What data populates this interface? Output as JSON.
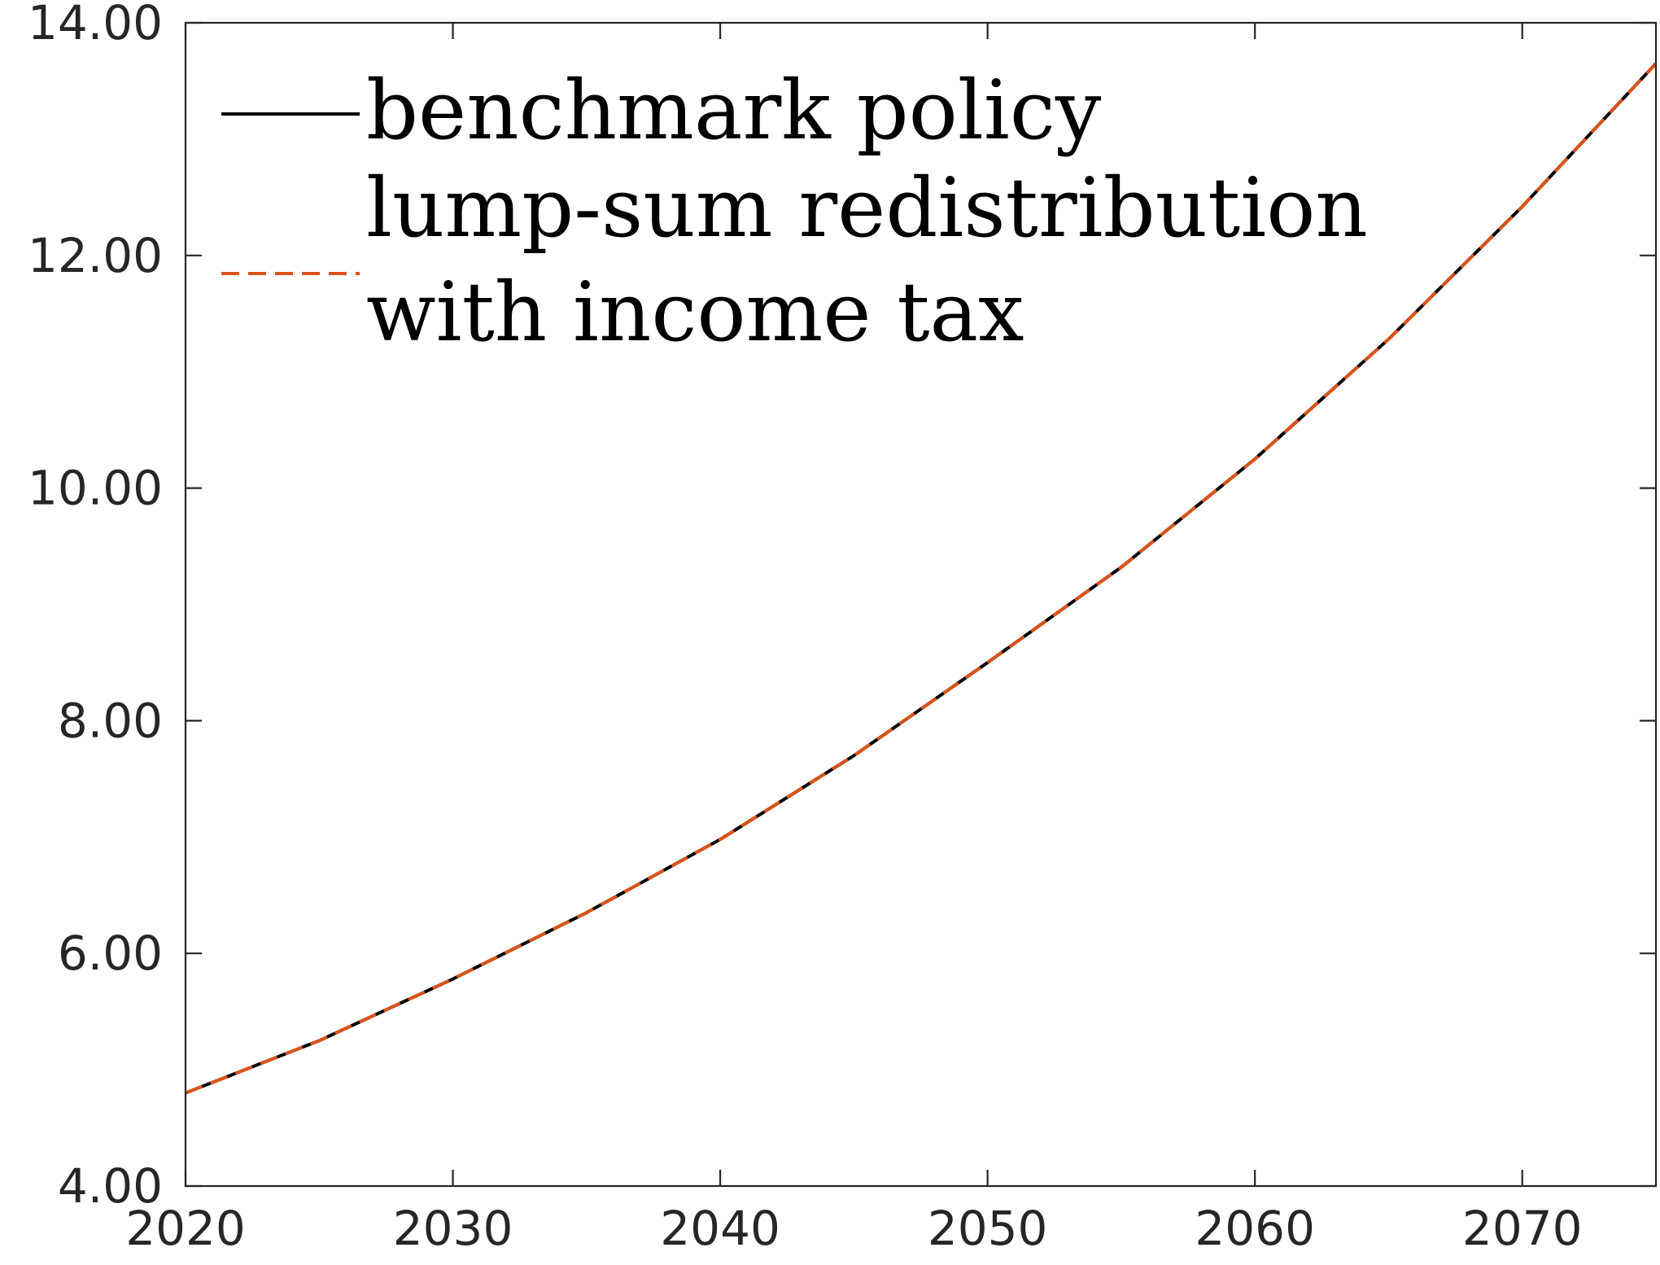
{
  "chart_data": {
    "type": "line",
    "title": "",
    "xlabel": "",
    "ylabel": "",
    "xlim": [
      2020,
      2075
    ],
    "ylim": [
      4,
      14
    ],
    "x_ticks": [
      "2020",
      "2030",
      "2040",
      "2050",
      "2060",
      "2070"
    ],
    "y_ticks": [
      "4.00",
      "6.00",
      "8.00",
      "10.00",
      "12.00",
      "14.00"
    ],
    "grid": false,
    "box": true,
    "legend_position": "top-left",
    "x": [
      2020,
      2025,
      2030,
      2035,
      2040,
      2045,
      2050,
      2055,
      2060,
      2065,
      2070,
      2075
    ],
    "series": [
      {
        "name": "benchmark policy",
        "color": "#000000",
        "style": "solid",
        "values": [
          4.8,
          5.25,
          5.78,
          6.35,
          6.98,
          7.7,
          8.5,
          9.32,
          10.25,
          11.28,
          12.42,
          13.65
        ]
      },
      {
        "name": "lump-sum redistribution with income tax",
        "name_lines": [
          "lump-sum redistribution",
          "with income tax"
        ],
        "color": "#d95319",
        "style": "dashed",
        "values": [
          4.8,
          5.25,
          5.78,
          6.35,
          6.98,
          7.7,
          8.5,
          9.32,
          10.25,
          11.28,
          12.42,
          13.65
        ]
      }
    ]
  }
}
